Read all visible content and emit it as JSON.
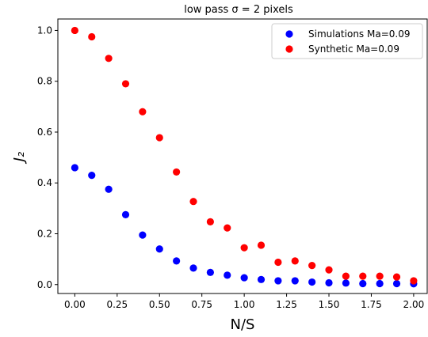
{
  "chart_data": {
    "type": "scatter",
    "title": "low pass σ = 2 pixels",
    "xlabel": "N/S",
    "ylabel": "J₂",
    "xlim": [
      -0.1,
      2.08
    ],
    "ylim": [
      -0.035,
      1.045
    ],
    "x_ticks": [
      0.0,
      0.25,
      0.5,
      0.75,
      1.0,
      1.25,
      1.5,
      1.75,
      2.0
    ],
    "x_tick_labels": [
      "0.00",
      "0.25",
      "0.50",
      "0.75",
      "1.00",
      "1.25",
      "1.50",
      "1.75",
      "2.00"
    ],
    "y_ticks": [
      0.0,
      0.2,
      0.4,
      0.6,
      0.8,
      1.0
    ],
    "y_tick_labels": [
      "0.0",
      "0.2",
      "0.4",
      "0.6",
      "0.8",
      "1.0"
    ],
    "grid": false,
    "legend_position": "top-right",
    "x": [
      0.0,
      0.1,
      0.2,
      0.3,
      0.4,
      0.5,
      0.6,
      0.7,
      0.8,
      0.9,
      1.0,
      1.1,
      1.2,
      1.3,
      1.4,
      1.5,
      1.6,
      1.7,
      1.8,
      1.9,
      2.0
    ],
    "series": [
      {
        "name": "Simulations Ma=0.09",
        "color": "#0000ff",
        "values": [
          0.46,
          0.43,
          0.375,
          0.275,
          0.195,
          0.14,
          0.093,
          0.065,
          0.048,
          0.037,
          0.027,
          0.02,
          0.015,
          0.015,
          0.01,
          0.007,
          0.006,
          0.004,
          0.004,
          0.004,
          0.003
        ]
      },
      {
        "name": "Synthetic Ma=0.09",
        "color": "#ff0000",
        "values": [
          1.0,
          0.975,
          0.89,
          0.79,
          0.68,
          0.578,
          0.443,
          0.327,
          0.247,
          0.223,
          0.145,
          0.155,
          0.088,
          0.093,
          0.075,
          0.058,
          0.033,
          0.033,
          0.033,
          0.03,
          0.015
        ]
      }
    ]
  }
}
